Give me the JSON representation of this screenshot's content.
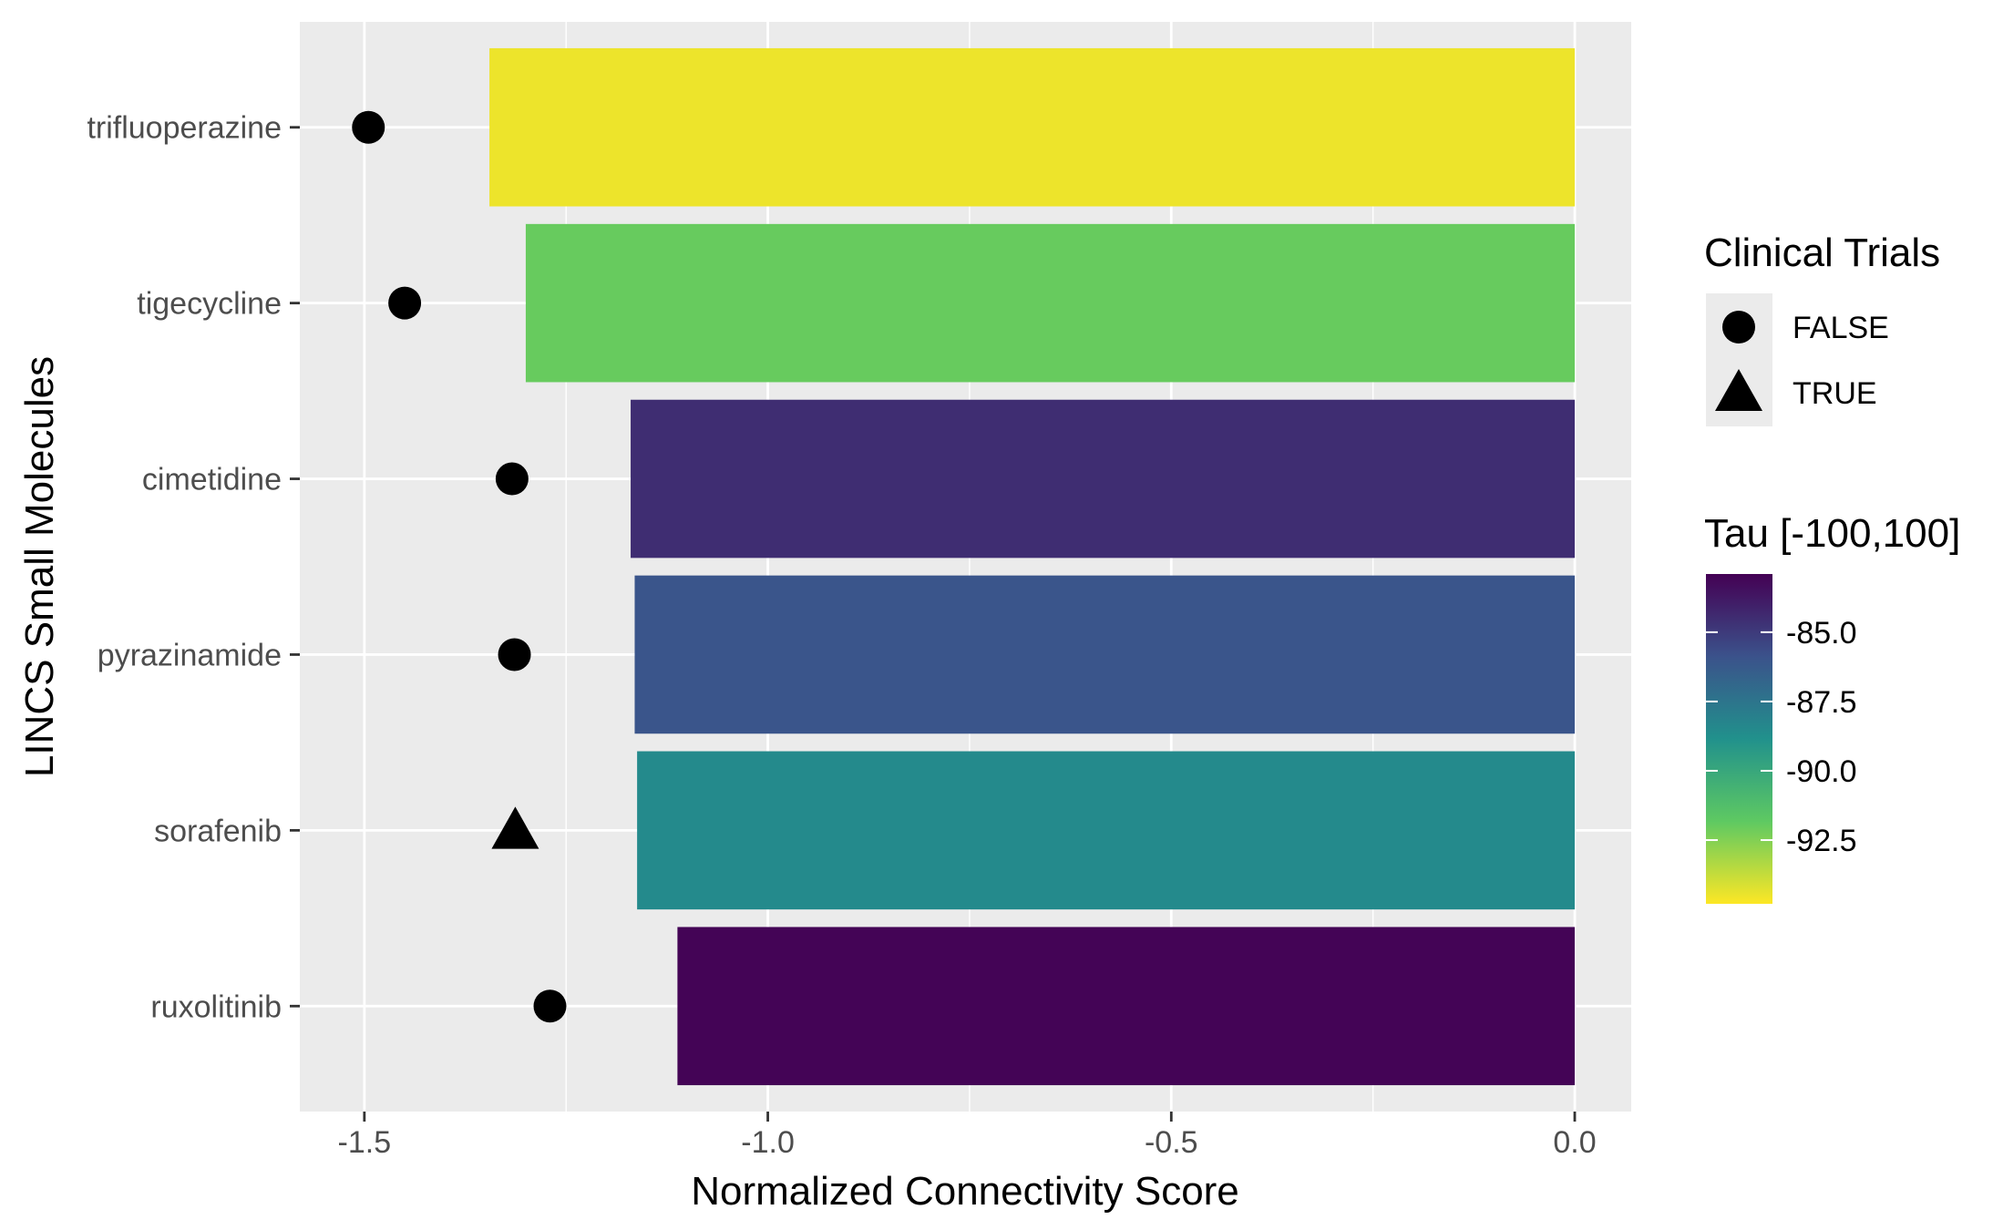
{
  "chart_data": {
    "type": "bar",
    "orientation": "horizontal",
    "xlabel": "Normalized Connectivity Score",
    "ylabel": "LINCS Small Molecules",
    "xlim": [
      -1.58,
      0.07
    ],
    "xticks": [
      -1.5,
      -1.0,
      -0.5,
      0.0
    ],
    "xtick_labels": [
      "-1.5",
      "-1.0",
      "-0.5",
      "0.0"
    ],
    "grid": true,
    "categories": [
      "trifluoperazine",
      "tigecycline",
      "cimetidine",
      "pyrazinamide",
      "sorafenib",
      "ruxolitinib"
    ],
    "values": [
      -1.345,
      -1.3,
      -1.17,
      -1.165,
      -1.162,
      -1.112
    ],
    "tau": [
      -94.5,
      -92.0,
      -84.5,
      -86.0,
      -88.5,
      -83.0
    ],
    "points": [
      {
        "x": -1.495,
        "clinical_trials": "FALSE"
      },
      {
        "x": -1.45,
        "clinical_trials": "FALSE"
      },
      {
        "x": -1.317,
        "clinical_trials": "FALSE"
      },
      {
        "x": -1.314,
        "clinical_trials": "FALSE"
      },
      {
        "x": -1.313,
        "clinical_trials": "TRUE"
      },
      {
        "x": -1.27,
        "clinical_trials": "FALSE"
      }
    ],
    "legend_shape": {
      "title": "Clinical Trials",
      "entries": [
        {
          "label": "FALSE",
          "shape": "circle"
        },
        {
          "label": "TRUE",
          "shape": "triangle"
        }
      ]
    },
    "legend_color": {
      "title": "Tau [-100,100]",
      "range": [
        -94.8,
        -82.9
      ],
      "ticks": [
        -85.0,
        -87.5,
        -90.0,
        -92.5
      ],
      "tick_labels": [
        "-85.0",
        "-87.5",
        "-90.0",
        "-92.5"
      ],
      "colormap": "viridis"
    },
    "legend_position": "right",
    "colors": {
      "panel": "#ebebeb",
      "grid": "#ffffff",
      "text": "#4d4d4d",
      "title_text": "#000000",
      "marker": "#000000"
    }
  }
}
